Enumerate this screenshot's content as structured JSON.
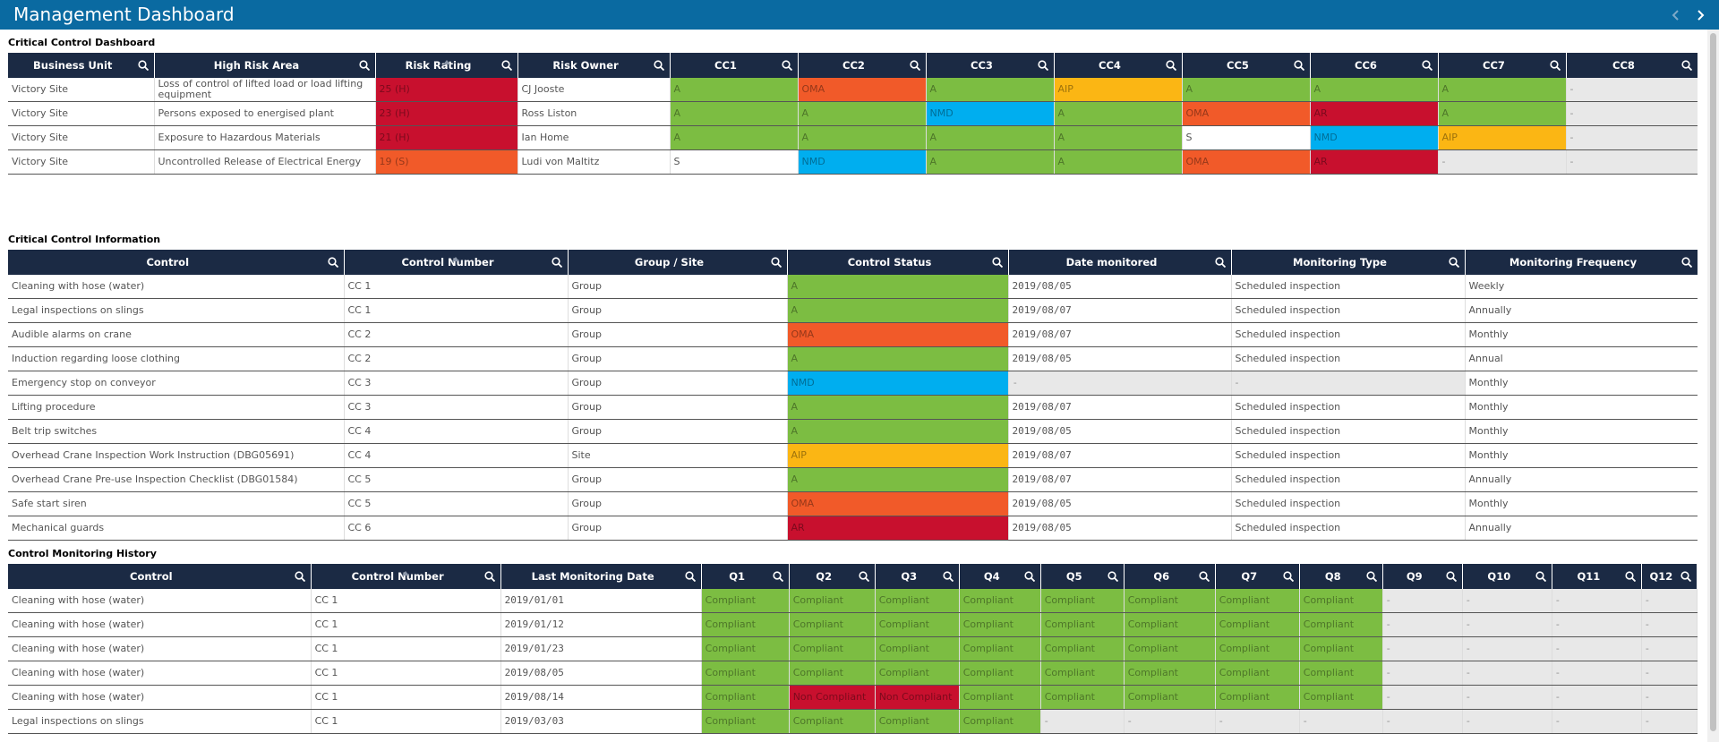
{
  "header": {
    "title": "Management Dashboard"
  },
  "sections": [
    {
      "title": "Critical Control Dashboard",
      "headers": [
        "Business Unit",
        "High Risk Area",
        "Risk Rating",
        "Risk Owner",
        "CC1",
        "CC2",
        "CC3",
        "CC4",
        "CC5",
        "CC6",
        "CC7",
        "CC8"
      ],
      "rows": [
        [
          "Victory Site",
          "Loss of control of lifted load or load lifting equipment",
          "25 (H)",
          "CJ Jooste",
          "A",
          "OMA",
          "A",
          "AIP",
          "A",
          "A",
          "A",
          "-"
        ],
        [
          "Victory Site",
          "Persons exposed to energised plant",
          "23 (H)",
          "Ross Liston",
          "A",
          "A",
          "NMD",
          "A",
          "OMA",
          "AR",
          "A",
          "-"
        ],
        [
          "Victory Site",
          "Exposure to Hazardous Materials",
          "21 (H)",
          "Ian Home",
          "A",
          "A",
          "A",
          "A",
          "S",
          "NMD",
          "AIP",
          "-"
        ],
        [
          "Victory Site",
          "Uncontrolled Release of Electrical Energy",
          "19 (S)",
          "Ludi von Maltitz",
          "S",
          "NMD",
          "A",
          "A",
          "OMA",
          "AR",
          "-",
          "-"
        ]
      ],
      "colors": [
        [
          null,
          null,
          "#c8102e",
          null,
          "#7cbd42",
          "#f15a29",
          "#7cbd42",
          "#fbb614",
          "#7cbd42",
          "#7cbd42",
          "#7cbd42",
          "#e8e8e8"
        ],
        [
          null,
          null,
          "#c8102e",
          null,
          "#7cbd42",
          "#7cbd42",
          "#00aeef",
          "#7cbd42",
          "#f15a29",
          "#c8102e",
          "#7cbd42",
          "#e8e8e8"
        ],
        [
          null,
          null,
          "#c8102e",
          null,
          "#7cbd42",
          "#7cbd42",
          "#7cbd42",
          "#7cbd42",
          null,
          "#00aeef",
          "#fbb614",
          "#e8e8e8"
        ],
        [
          null,
          null,
          "#f15a29",
          null,
          null,
          "#00aeef",
          "#7cbd42",
          "#7cbd42",
          "#f15a29",
          "#c8102e",
          "#e8e8e8",
          "#e8e8e8"
        ]
      ]
    },
    {
      "title": "Critical Control Information",
      "headers": [
        "Control",
        "Control Number",
        "Group / Site",
        "Control Status",
        "Date monitored",
        "Monitoring Type",
        "Monitoring Frequency"
      ],
      "rows": [
        [
          "Cleaning with hose (water)",
          "CC 1",
          "Group",
          "A",
          "2019/08/05",
          "Scheduled inspection",
          "Weekly"
        ],
        [
          "Legal inspections on slings",
          "CC 1",
          "Group",
          "A",
          "2019/08/07",
          "Scheduled inspection",
          "Annually"
        ],
        [
          "Audible alarms on crane",
          "CC 2",
          "Group",
          "OMA",
          "2019/08/07",
          "Scheduled inspection",
          "Monthly"
        ],
        [
          "Induction regarding loose clothing",
          "CC 2",
          "Group",
          "A",
          "2019/08/05",
          "Scheduled inspection",
          "Annual"
        ],
        [
          "Emergency stop on conveyor",
          "CC 3",
          "Group",
          "NMD",
          "-",
          "-",
          "Monthly"
        ],
        [
          "Lifting procedure",
          "CC 3",
          "Group",
          "A",
          "2019/08/07",
          "Scheduled inspection",
          "Monthly"
        ],
        [
          "Belt trip switches",
          "CC 4",
          "Group",
          "A",
          "2019/08/05",
          "Scheduled inspection",
          "Monthly"
        ],
        [
          "Overhead Crane Inspection Work Instruction (DBG05691)",
          "CC 4",
          "Site",
          "AIP",
          "2019/08/07",
          "Scheduled inspection",
          "Monthly"
        ],
        [
          "Overhead Crane Pre-use Inspection Checklist (DBG01584)",
          "CC 5",
          "Group",
          "A",
          "2019/08/07",
          "Scheduled inspection",
          "Annually"
        ],
        [
          "Safe start siren",
          "CC 5",
          "Group",
          "OMA",
          "2019/08/05",
          "Scheduled inspection",
          "Monthly"
        ],
        [
          "Mechanical guards",
          "CC 6",
          "Group",
          "AR",
          "2019/08/05",
          "Scheduled inspection",
          "Annually"
        ]
      ],
      "colors": [
        [
          null,
          null,
          null,
          "#7cbd42",
          null,
          null,
          null
        ],
        [
          null,
          null,
          null,
          "#7cbd42",
          null,
          null,
          null
        ],
        [
          null,
          null,
          null,
          "#f15a29",
          null,
          null,
          null
        ],
        [
          null,
          null,
          null,
          "#7cbd42",
          null,
          null,
          null
        ],
        [
          null,
          null,
          null,
          "#00aeef",
          "#e8e8e8",
          "#e8e8e8",
          null
        ],
        [
          null,
          null,
          null,
          "#7cbd42",
          null,
          null,
          null
        ],
        [
          null,
          null,
          null,
          "#7cbd42",
          null,
          null,
          null
        ],
        [
          null,
          null,
          null,
          "#fbb614",
          null,
          null,
          null
        ],
        [
          null,
          null,
          null,
          "#7cbd42",
          null,
          null,
          null
        ],
        [
          null,
          null,
          null,
          "#f15a29",
          null,
          null,
          null
        ],
        [
          null,
          null,
          null,
          "#c8102e",
          null,
          null,
          null
        ]
      ]
    },
    {
      "title": "Control Monitoring History",
      "headers": [
        "Control",
        "Control Number",
        "Last Monitoring Date",
        "Q1",
        "Q2",
        "Q3",
        "Q4",
        "Q5",
        "Q6",
        "Q7",
        "Q8",
        "Q9",
        "Q10",
        "Q11",
        "Q12"
      ],
      "rows": [
        [
          "Cleaning with hose (water)",
          "CC 1",
          "2019/01/01",
          "Compliant",
          "Compliant",
          "Compliant",
          "Compliant",
          "Compliant",
          "Compliant",
          "Compliant",
          "Compliant",
          "-",
          "-",
          "-",
          "-"
        ],
        [
          "Cleaning with hose (water)",
          "CC 1",
          "2019/01/12",
          "Compliant",
          "Compliant",
          "Compliant",
          "Compliant",
          "Compliant",
          "Compliant",
          "Compliant",
          "Compliant",
          "-",
          "-",
          "-",
          "-"
        ],
        [
          "Cleaning with hose (water)",
          "CC 1",
          "2019/01/23",
          "Compliant",
          "Compliant",
          "Compliant",
          "Compliant",
          "Compliant",
          "Compliant",
          "Compliant",
          "Compliant",
          "-",
          "-",
          "-",
          "-"
        ],
        [
          "Cleaning with hose (water)",
          "CC 1",
          "2019/08/05",
          "Compliant",
          "Compliant",
          "Compliant",
          "Compliant",
          "Compliant",
          "Compliant",
          "Compliant",
          "Compliant",
          "-",
          "-",
          "-",
          "-"
        ],
        [
          "Cleaning with hose (water)",
          "CC 1",
          "2019/08/14",
          "Compliant",
          "Non Compliant",
          "Non Compliant",
          "Compliant",
          "Compliant",
          "Compliant",
          "Compliant",
          "Compliant",
          "-",
          "-",
          "-",
          "-"
        ],
        [
          "Legal inspections on slings",
          "CC 1",
          "2019/03/03",
          "Compliant",
          "Compliant",
          "Compliant",
          "Compliant",
          "-",
          "-",
          "-",
          "-",
          "-",
          "-",
          "-",
          "-"
        ]
      ],
      "colors": [
        [
          null,
          null,
          null,
          "#7cbd42",
          "#7cbd42",
          "#7cbd42",
          "#7cbd42",
          "#7cbd42",
          "#7cbd42",
          "#7cbd42",
          "#7cbd42",
          "#e8e8e8",
          "#e8e8e8",
          "#e8e8e8",
          "#e8e8e8"
        ],
        [
          null,
          null,
          null,
          "#7cbd42",
          "#7cbd42",
          "#7cbd42",
          "#7cbd42",
          "#7cbd42",
          "#7cbd42",
          "#7cbd42",
          "#7cbd42",
          "#e8e8e8",
          "#e8e8e8",
          "#e8e8e8",
          "#e8e8e8"
        ],
        [
          null,
          null,
          null,
          "#7cbd42",
          "#7cbd42",
          "#7cbd42",
          "#7cbd42",
          "#7cbd42",
          "#7cbd42",
          "#7cbd42",
          "#7cbd42",
          "#e8e8e8",
          "#e8e8e8",
          "#e8e8e8",
          "#e8e8e8"
        ],
        [
          null,
          null,
          null,
          "#7cbd42",
          "#7cbd42",
          "#7cbd42",
          "#7cbd42",
          "#7cbd42",
          "#7cbd42",
          "#7cbd42",
          "#7cbd42",
          "#e8e8e8",
          "#e8e8e8",
          "#e8e8e8",
          "#e8e8e8"
        ],
        [
          null,
          null,
          null,
          "#7cbd42",
          "#c8102e",
          "#c8102e",
          "#7cbd42",
          "#7cbd42",
          "#7cbd42",
          "#7cbd42",
          "#7cbd42",
          "#e8e8e8",
          "#e8e8e8",
          "#e8e8e8",
          "#e8e8e8"
        ],
        [
          null,
          null,
          null,
          "#7cbd42",
          "#7cbd42",
          "#7cbd42",
          "#7cbd42",
          "#e8e8e8",
          "#e8e8e8",
          "#e8e8e8",
          "#e8e8e8",
          "#e8e8e8",
          "#e8e8e8",
          "#e8e8e8",
          "#e8e8e8"
        ]
      ]
    }
  ]
}
